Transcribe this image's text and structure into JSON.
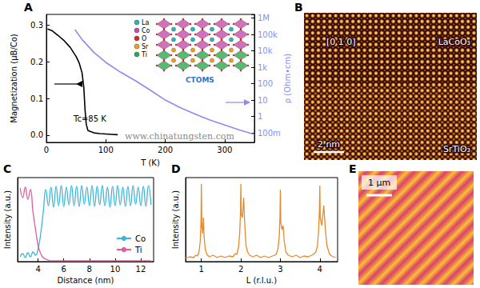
{
  "chart_data": [
    {
      "panel": "A",
      "type": "line",
      "x_label": "T (K)",
      "y_label": "Magnetization (μB/Co)",
      "y2_label": "ρ (Ohm•cm)",
      "xlim": [
        0,
        350
      ],
      "xticks": [
        0,
        100,
        200,
        300
      ],
      "ylim": [
        -0.02,
        0.33
      ],
      "yticks": [
        {
          "value": 0,
          "label": "0.0"
        },
        0.1,
        0.2,
        0.3
      ],
      "y2lim": [
        0.026,
        1700000
      ],
      "y2ticks": [
        {
          "value": 0.1,
          "label": "100m"
        },
        1,
        10,
        100,
        {
          "value": 1000,
          "label": "1k"
        },
        {
          "value": 10000,
          "label": "10k"
        },
        {
          "value": 100000,
          "label": "100k"
        },
        {
          "value": 1000000,
          "label": "1M"
        }
      ],
      "log": "y2",
      "grid": false,
      "annotations": [
        "Tc=85 K"
      ],
      "inset_legend": [
        {
          "label": "La",
          "color": "#2bb3c0"
        },
        {
          "label": "Co",
          "color": "#c44fa8"
        },
        {
          "label": "O",
          "color": "#d8262a"
        },
        {
          "label": "Sr",
          "color": "#e8a21c"
        },
        {
          "label": "Ti",
          "color": "#2fa84f"
        }
      ],
      "series": [
        {
          "color": "#000000",
          "x": [
            2,
            10,
            20,
            30,
            40,
            50,
            55,
            60,
            63,
            65,
            67,
            70,
            80,
            90,
            100,
            110,
            120
          ],
          "values": [
            0.29,
            0.285,
            0.272,
            0.258,
            0.24,
            0.215,
            0.198,
            0.17,
            0.13,
            0.07,
            0.03,
            0.012,
            0.006,
            0.004,
            0.003,
            0.002,
            0.001
          ]
        },
        {
          "color": "#8c8cf0",
          "axis": "y2",
          "x": [
            48,
            60,
            80,
            100,
            125,
            150,
            175,
            200,
            225,
            250,
            275,
            300,
            325,
            350
          ],
          "values": [
            200000,
            50000,
            8000,
            2000,
            500,
            150,
            40,
            10,
            3.5,
            1.4,
            0.6,
            0.3,
            0.15,
            0.08
          ]
        }
      ]
    },
    {
      "panel": "C",
      "type": "line",
      "x_label": "Distance (nm)",
      "y_label": "Intensity (a.u.)",
      "xlim": [
        2.4,
        13
      ],
      "xticks": [
        4,
        6,
        8,
        10,
        12
      ],
      "ylim": [
        0,
        1.05
      ],
      "tick_labels": "x",
      "grid": false,
      "legend": "lower right",
      "x": [
        2.6,
        2.8,
        3,
        3.2,
        3.4,
        3.6,
        3.8,
        4,
        4.2,
        4.4,
        4.6,
        4.8,
        5,
        5.2,
        5.4,
        5.6,
        5.8,
        6,
        6.2,
        6.4,
        6.6,
        6.8,
        7,
        7.2,
        7.4,
        7.6,
        7.8,
        8,
        8.2,
        8.4,
        8.6,
        8.8,
        9,
        9.2,
        9.4,
        9.6,
        9.8,
        10,
        10.2,
        10.4,
        10.6,
        10.8,
        11,
        11.2,
        11.4,
        11.6,
        11.8,
        12,
        12.2,
        12.4,
        12.6,
        12.8
      ],
      "series": [
        {
          "name": "Co",
          "color": "#3cb5d8",
          "values": [
            0.06,
            0.1,
            0.05,
            0.11,
            0.06,
            0.12,
            0.08,
            0.16,
            0.35,
            0.62,
            0.9,
            0.7,
            0.93,
            0.68,
            0.94,
            0.7,
            0.95,
            0.69,
            0.93,
            0.71,
            0.95,
            0.7,
            0.94,
            0.69,
            0.95,
            0.72,
            0.93,
            0.7,
            0.95,
            0.69,
            0.94,
            0.71,
            0.95,
            0.7,
            0.93,
            0.68,
            0.94,
            0.7,
            0.95,
            0.71,
            0.93,
            0.69,
            0.94,
            0.7,
            0.95,
            0.72,
            0.93,
            0.7,
            0.94,
            0.69,
            0.95,
            0.71
          ]
        },
        {
          "name": "Ti",
          "color": "#e05a9e",
          "values": [
            0.92,
            0.8,
            0.93,
            0.78,
            0.9,
            0.62,
            0.4,
            0.2,
            0.1,
            0.05,
            0.03,
            0.02,
            0.01,
            0.01,
            0.01,
            0.01,
            0.01,
            0.01,
            0.01,
            0.01,
            0.01,
            0.01,
            0.01,
            0.01,
            0.01,
            0.01,
            0.01,
            0.01,
            0.01,
            0.01,
            0.01,
            0.01,
            0.01,
            0.01,
            0.01,
            0.01,
            0.01,
            0.01,
            0.01,
            0.01,
            0.01,
            0.01,
            0.01,
            0.01,
            0.01,
            0.01,
            0.01,
            0.01,
            0.01,
            0.01,
            0.01,
            0.01
          ]
        }
      ]
    },
    {
      "panel": "D",
      "type": "line",
      "x_label": "L (r.l.u.)",
      "y_label": "Intensity (a.u.)",
      "xlim": [
        0.6,
        4.45
      ],
      "xticks": [
        1,
        2,
        3,
        4
      ],
      "ylim": [
        0,
        1.05
      ],
      "tick_labels": "x",
      "grid": false,
      "series": [
        {
          "color": "#e8892b",
          "x": [
            0.6,
            0.7,
            0.8,
            0.86,
            0.9,
            0.94,
            0.97,
            0.99,
            1,
            1.01,
            1.03,
            1.05,
            1.07,
            1.1,
            1.14,
            1.2,
            1.3,
            1.4,
            1.5,
            1.6,
            1.7,
            1.8,
            1.86,
            1.9,
            1.94,
            1.97,
            1.99,
            2,
            2.01,
            2.04,
            2.07,
            2.1,
            2.13,
            2.17,
            2.22,
            2.3,
            2.4,
            2.5,
            2.6,
            2.7,
            2.8,
            2.86,
            2.9,
            2.94,
            2.97,
            2.99,
            3,
            3.01,
            3.04,
            3.07,
            3.1,
            3.14,
            3.2,
            3.3,
            3.4,
            3.5,
            3.6,
            3.7,
            3.8,
            3.86,
            3.9,
            3.94,
            3.97,
            3.99,
            4,
            4.01,
            4.05,
            4.1,
            4.14,
            4.18,
            4.24,
            4.3,
            4.4
          ],
          "values": [
            0.04,
            0.06,
            0.05,
            0.08,
            0.07,
            0.12,
            0.25,
            0.5,
            0.97,
            0.45,
            0.35,
            0.55,
            0.3,
            0.15,
            0.09,
            0.06,
            0.08,
            0.05,
            0.07,
            0.05,
            0.07,
            0.06,
            0.1,
            0.09,
            0.18,
            0.35,
            0.6,
            0.97,
            0.6,
            0.55,
            0.8,
            0.45,
            0.2,
            0.12,
            0.08,
            0.06,
            0.08,
            0.05,
            0.07,
            0.05,
            0.07,
            0.08,
            0.1,
            0.16,
            0.3,
            0.55,
            0.9,
            0.5,
            0.4,
            0.45,
            0.25,
            0.12,
            0.08,
            0.06,
            0.08,
            0.05,
            0.07,
            0.06,
            0.08,
            0.1,
            0.12,
            0.2,
            0.4,
            0.65,
            0.95,
            0.55,
            0.45,
            0.7,
            0.4,
            0.2,
            0.1,
            0.07,
            0.05
          ]
        }
      ]
    }
  ],
  "images": [
    {
      "panel": "B",
      "labels": {
        "zone_axis": "[0 1 0]",
        "film": "LaCoO₃",
        "substrate": "SrTiO₃",
        "scale_bar": "2 nm"
      }
    },
    {
      "panel": "E",
      "labels": {
        "scale_bar": "1 μm"
      }
    }
  ],
  "watermark": {
    "url": "www.chinatungsten.com",
    "logo": "CTOMS"
  }
}
